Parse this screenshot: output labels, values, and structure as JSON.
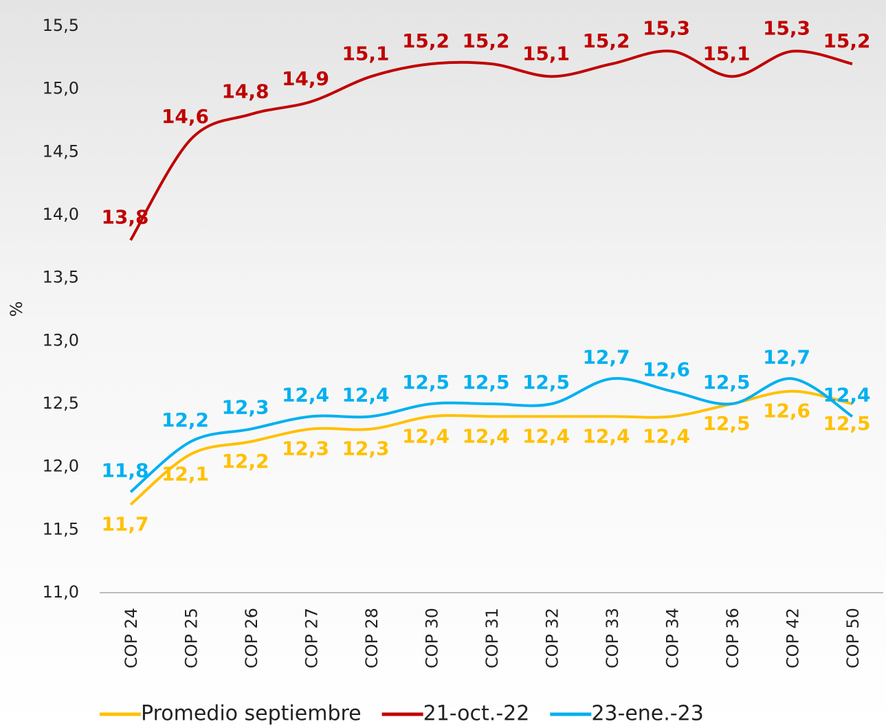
{
  "chart_data": {
    "type": "line",
    "y_label": "%",
    "categories": [
      "COP 24",
      "COP 25",
      "COP 26",
      "COP 27",
      "COP 28",
      "COP 30",
      "COP 31",
      "COP 32",
      "COP 33",
      "COP 34",
      "COP 36",
      "COP 42",
      "COP 50"
    ],
    "series": [
      {
        "name": "Promedio septiembre",
        "color": "#FFC000",
        "values": [
          11.7,
          12.1,
          12.2,
          12.3,
          12.3,
          12.4,
          12.4,
          12.4,
          12.4,
          12.4,
          12.5,
          12.6,
          12.5
        ],
        "value_labels": [
          "11,7",
          "12,1",
          "12,2",
          "12,3",
          "12,3",
          "12,4",
          "12,4",
          "12,4",
          "12,4",
          "12,4",
          "12,5",
          "12,6",
          "12,5"
        ]
      },
      {
        "name": "21-oct.-22",
        "color": "#C00000",
        "values": [
          13.8,
          14.6,
          14.8,
          14.9,
          15.1,
          15.2,
          15.2,
          15.1,
          15.2,
          15.3,
          15.1,
          15.3,
          15.2
        ],
        "value_labels": [
          "13,8",
          "14,6",
          "14,8",
          "14,9",
          "15,1",
          "15,2",
          "15,2",
          "15,1",
          "15,2",
          "15,3",
          "15,1",
          "15,3",
          "15,2"
        ]
      },
      {
        "name": "23-ene.-23",
        "color": "#00B0F0",
        "values": [
          11.8,
          12.2,
          12.3,
          12.4,
          12.4,
          12.5,
          12.5,
          12.5,
          12.7,
          12.6,
          12.5,
          12.7,
          12.4
        ],
        "value_labels": [
          "11,8",
          "12,2",
          "12,3",
          "12,4",
          "12,4",
          "12,5",
          "12,5",
          "12,5",
          "12,7",
          "12,6",
          "12,5",
          "12,7",
          "12,4"
        ]
      }
    ],
    "ylim": [
      11,
      15.5
    ],
    "yticks": [
      {
        "value": 11,
        "label": "11,0"
      },
      {
        "value": 11.5,
        "label": "11,5"
      },
      {
        "value": 12,
        "label": "12,0"
      },
      {
        "value": 12.5,
        "label": "12,5"
      },
      {
        "value": 13,
        "label": "13,0"
      },
      {
        "value": 13.5,
        "label": "13,5"
      },
      {
        "value": 14,
        "label": "14,0"
      },
      {
        "value": 14.5,
        "label": "14,5"
      },
      {
        "value": 15,
        "label": "15,0"
      },
      {
        "value": 15.5,
        "label": "15,5"
      }
    ],
    "grid": false
  }
}
